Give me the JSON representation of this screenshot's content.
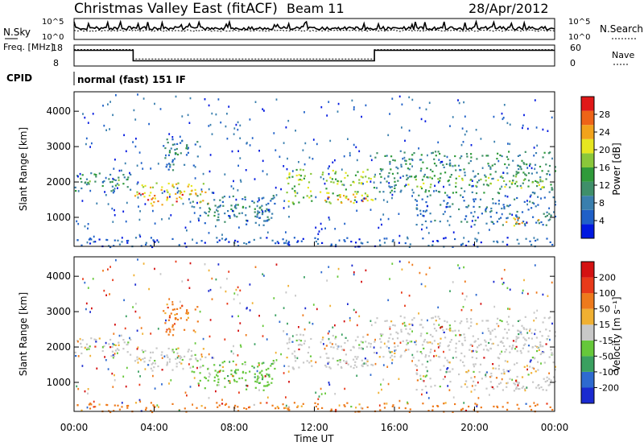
{
  "header": {
    "title": "Christmas Valley East (fitACF)",
    "beam": "Beam 11",
    "date": "28/Apr/2012"
  },
  "chart_data": [
    {
      "type": "line",
      "name": "noise",
      "left_label": "N.Sky",
      "right_label": "N.Search",
      "y_ticks_left": [
        "10^5",
        "10^0"
      ],
      "y_ticks_right": [
        "10^5",
        "10^0"
      ]
    },
    {
      "type": "line",
      "name": "frequency",
      "left_label": "Freq. [MHz]",
      "right_label": "Nave",
      "y_ticks_left": [
        "18",
        "8"
      ],
      "y_ticks_right": [
        "60",
        "0"
      ],
      "freq_segments": [
        {
          "start": 0.0,
          "end": 2.95,
          "value": 15.5
        },
        {
          "start": 2.95,
          "end": 15.0,
          "value": 10.5
        },
        {
          "start": 15.0,
          "end": 24.0,
          "value": 15.5
        }
      ],
      "cpid_label": "CPID",
      "cpid_text": "normal (fast) 151 IF"
    },
    {
      "type": "heatmap",
      "name": "power",
      "ylabel": "Slant Range [km]",
      "ylim": [
        180,
        4550
      ],
      "y_ticks": [
        1000,
        2000,
        3000,
        4000
      ],
      "colorbar_label": "Power [dB]",
      "colorbar_ticks": [
        "28",
        "24",
        "20",
        "16",
        "12",
        "8",
        "4"
      ],
      "colorbar_colors": [
        "#0018e0",
        "#1f60c8",
        "#3a7fae",
        "#3f8f6a",
        "#2f9a3a",
        "#8ac73a",
        "#e6e620",
        "#f2a31c",
        "#ee6418",
        "#e01818"
      ]
    },
    {
      "type": "heatmap",
      "name": "velocity",
      "ylabel": "Slant Range [km]",
      "ylim": [
        180,
        4550
      ],
      "y_ticks": [
        1000,
        2000,
        3000,
        4000
      ],
      "colorbar_label": "Velocity [m s⁻¹]",
      "colorbar_ticks": [
        "200",
        "100",
        "50",
        "15",
        "-15",
        "-50",
        "-100",
        "-200"
      ],
      "colorbar_colors": [
        "#1a2ad0",
        "#2e6ad0",
        "#3aa060",
        "#66c83a",
        "#c8c8c8",
        "#f0b032",
        "#ee7a1c",
        "#e83a1a",
        "#d41212"
      ],
      "xlabel": "Time UT",
      "x_ticks": [
        "00:00",
        "04:00",
        "08:00",
        "12:00",
        "16:00",
        "20:00",
        "00:00"
      ],
      "xlim": [
        0,
        24
      ]
    }
  ],
  "echo_regions": [
    {
      "t0": 0.0,
      "t1": 2.9,
      "r0": 1750,
      "r1": 2300,
      "cls": 3,
      "vel": 4
    },
    {
      "t0": 0.4,
      "t1": 2.3,
      "r0": 1900,
      "r1": 2150,
      "cls": 4,
      "vel": 4
    },
    {
      "t0": 3.0,
      "t1": 6.8,
      "r0": 1350,
      "r1": 2000,
      "cls": 6,
      "vel": 4
    },
    {
      "t0": 3.2,
      "t1": 5.5,
      "r0": 1450,
      "r1": 1700,
      "cls": 8,
      "vel": 4
    },
    {
      "t0": 4.4,
      "t1": 6.2,
      "r0": 2350,
      "r1": 3250,
      "cls": 2,
      "vel": 6
    },
    {
      "t0": 4.7,
      "t1": 5.6,
      "r0": 2700,
      "r1": 3100,
      "cls": 3,
      "vel": 6
    },
    {
      "t0": 5.8,
      "t1": 10.0,
      "r0": 800,
      "r1": 1650,
      "cls": 2,
      "vel": 3
    },
    {
      "t0": 6.5,
      "t1": 9.6,
      "r0": 1000,
      "r1": 1400,
      "cls": 3,
      "vel": 3
    },
    {
      "t0": 10.5,
      "t1": 15.0,
      "r0": 1400,
      "r1": 2400,
      "cls": 5,
      "vel": 4
    },
    {
      "t0": 12.5,
      "t1": 14.9,
      "r0": 1400,
      "r1": 1750,
      "cls": 7,
      "vel": 4
    },
    {
      "t0": 15.0,
      "t1": 24.0,
      "r0": 1700,
      "r1": 2900,
      "cls": 3,
      "vel": 4
    },
    {
      "t0": 16.5,
      "t1": 23.5,
      "r0": 1850,
      "r1": 2200,
      "cls": 5,
      "vel": 4
    },
    {
      "t0": 17.0,
      "t1": 24.0,
      "r0": 800,
      "r1": 1650,
      "cls": 2,
      "vel": 4
    },
    {
      "t0": 21.5,
      "t1": 23.3,
      "r0": 750,
      "r1": 1000,
      "cls": 7,
      "vel": 4
    },
    {
      "t0": 0.0,
      "t1": 24.0,
      "r0": 180,
      "r1": 450,
      "cls": 1,
      "vel": 6
    }
  ]
}
